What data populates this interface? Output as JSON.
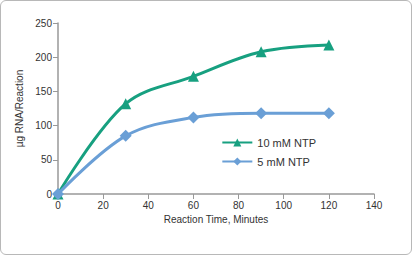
{
  "chart_data": {
    "type": "line",
    "x_label": "Reaction Time, Minutes",
    "y_label": "µg RNA/Reaction",
    "x": [
      0,
      30,
      60,
      90,
      120
    ],
    "series": [
      {
        "name": "10 mM NTP",
        "color": "#17a080",
        "marker": "triangle",
        "values": [
          0,
          132,
          172,
          208,
          218
        ]
      },
      {
        "name": "5 mM NTP",
        "color": "#6a9fd6",
        "marker": "diamond",
        "values": [
          0,
          85,
          112,
          118,
          118
        ]
      }
    ],
    "xlim": [
      0,
      140
    ],
    "xticks": [
      0,
      20,
      40,
      60,
      80,
      100,
      120,
      140
    ],
    "ylim": [
      0,
      250
    ],
    "yticks": [
      0,
      50,
      100,
      150,
      200,
      250
    ],
    "line_style": "smooth",
    "grid": false,
    "legend": "lower right"
  }
}
